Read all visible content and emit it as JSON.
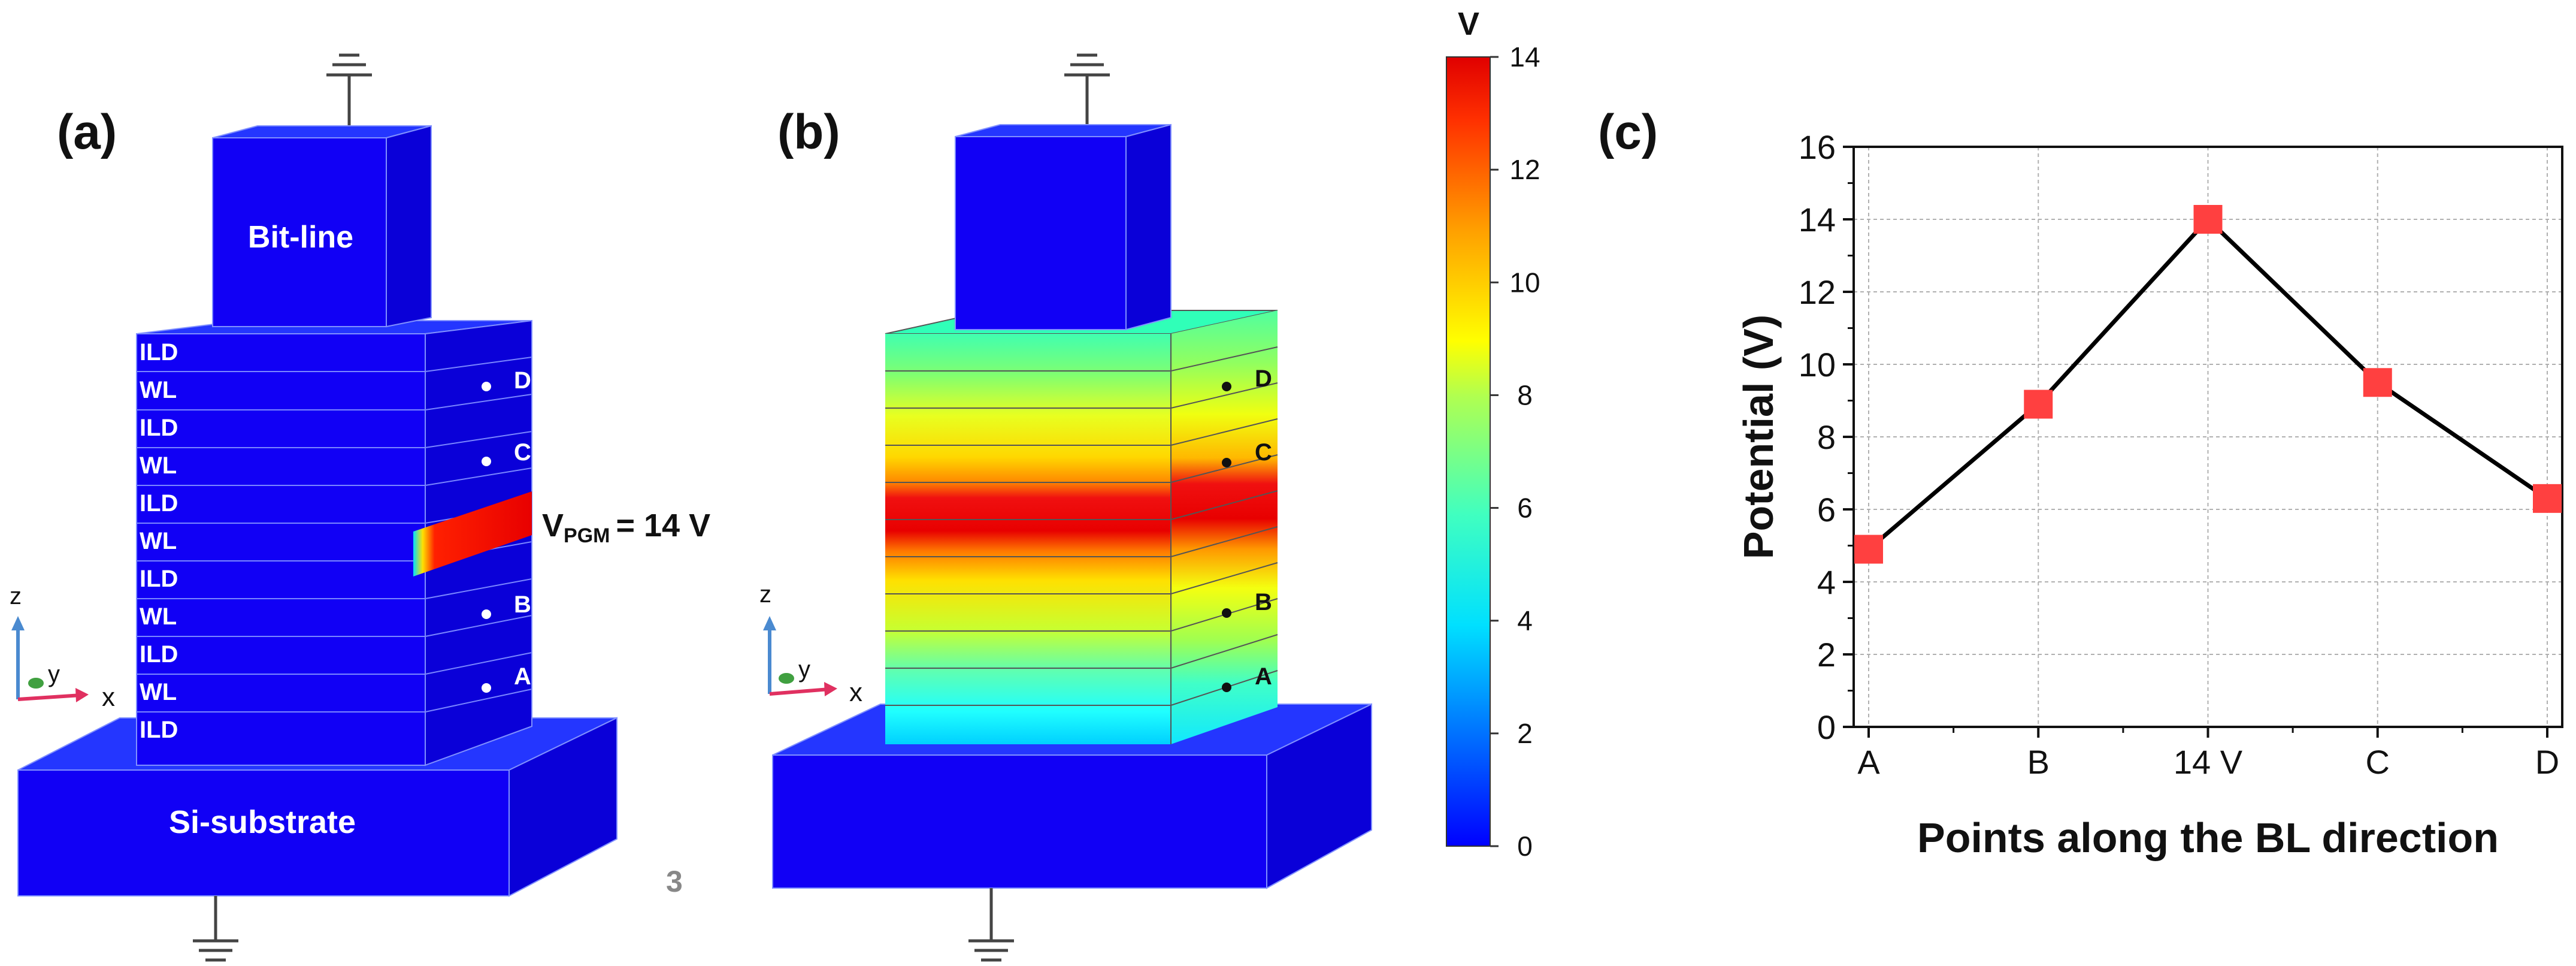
{
  "panel_a": {
    "label": "(a)",
    "top_electrode": "Bit-line",
    "substrate": "Si-substrate",
    "layers": [
      "ILD",
      "WL",
      "ILD",
      "WL",
      "ILD",
      "WL",
      "ILD",
      "WL",
      "ILD",
      "WL",
      "ILD"
    ],
    "points": [
      "D",
      "C",
      "B",
      "A"
    ],
    "vpgm_main": "V",
    "vpgm_sub": "PGM",
    "vpgm_value": "= 14 V",
    "axis_z": "z",
    "axis_y": "y",
    "axis_x": "x",
    "page_number": "3"
  },
  "panel_b": {
    "label": "(b)",
    "points": [
      "D",
      "C",
      "B",
      "A"
    ],
    "axis_z": "z",
    "axis_y": "y",
    "axis_x": "x",
    "colorbar": {
      "unit": "V",
      "min": 0,
      "max": 14,
      "ticks": [
        "0",
        "2",
        "4",
        "6",
        "8",
        "10",
        "12",
        "14"
      ]
    }
  },
  "panel_c": {
    "label": "(c)"
  },
  "colors": {
    "device_blue": "#1100f5",
    "wl_red": "#e8001a",
    "marker": "#ff4040",
    "line": "#000000"
  },
  "chart_data": {
    "type": "line",
    "title": "",
    "xlabel": "Points along the BL direction",
    "ylabel": "Potential (V)",
    "categories": [
      "A",
      "B",
      "14 V",
      "C",
      "D"
    ],
    "values": [
      4.9,
      8.9,
      14.0,
      9.5,
      6.3
    ],
    "ylim": [
      0,
      16
    ],
    "yticks": [
      0,
      2,
      4,
      6,
      8,
      10,
      12,
      14,
      16
    ],
    "grid": true,
    "legend": "none"
  }
}
